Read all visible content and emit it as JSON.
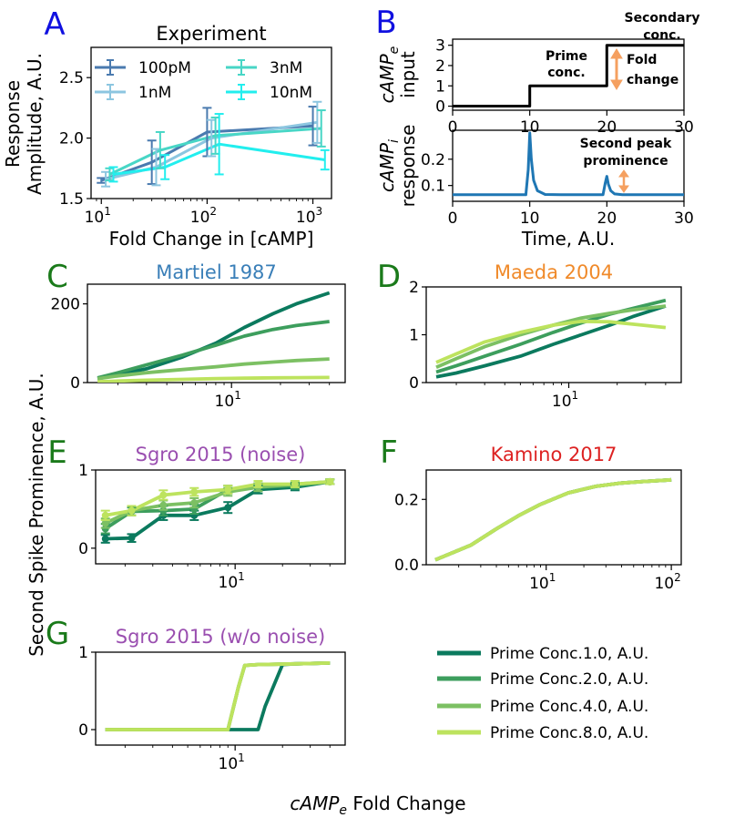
{
  "figure": {
    "shared_ylabel": "Second Spike Prominence, A.U.",
    "shared_xlabel_italic": "cAMP",
    "shared_xlabel_sub": "e",
    "shared_xlabel_rest": " Fold Change",
    "letter_colors": {
      "blue": "#1010e0",
      "green": "#1a7a1a"
    }
  },
  "legend_bottom": {
    "entries": [
      "Prime Conc.1.0, A.U.",
      "Prime Conc.2.0, A.U.",
      "Prime Conc.4.0, A.U.",
      "Prime Conc.8.0, A.U."
    ],
    "colors": [
      "#0b7a5e",
      "#3d9e5d",
      "#7cc063",
      "#bde35e"
    ]
  },
  "chart_data": [
    {
      "id": "A",
      "letter": "A",
      "type": "line",
      "title": "Experiment",
      "xlabel": "Fold Change in [cAMP]",
      "ylabel_line1": "Response",
      "ylabel_line2": "Amplitude, A.U.",
      "xscale": "log",
      "xlim": [
        8,
        1500
      ],
      "ylim": [
        1.5,
        2.75
      ],
      "yticks": [
        "1.5",
        "2.0",
        "2.5"
      ],
      "ytick_values": [
        1.5,
        2.0,
        2.5
      ],
      "xtick_bases": [
        "10",
        "10",
        "10"
      ],
      "xtick_exps": [
        "1",
        "2",
        "3"
      ],
      "xtick_values": [
        10,
        100,
        1000
      ],
      "legend": {
        "placement": "top-left",
        "columns": 2
      },
      "series": [
        {
          "name": "100pM",
          "color": "#4a7aaf",
          "x": [
            10,
            30,
            100,
            1000
          ],
          "y": [
            1.65,
            1.8,
            2.05,
            2.1
          ],
          "err": [
            0.02,
            0.18,
            0.2,
            0.16
          ]
        },
        {
          "name": "1nM",
          "color": "#8cc6e0",
          "x": [
            11,
            33,
            110,
            1100
          ],
          "y": [
            1.66,
            1.76,
            2.0,
            2.13
          ],
          "err": [
            0.06,
            0.15,
            0.15,
            0.17
          ]
        },
        {
          "name": "3nM",
          "color": "#48d6c6",
          "x": [
            12,
            36,
            120,
            1200
          ],
          "y": [
            1.7,
            1.9,
            2.02,
            2.08
          ],
          "err": [
            0.05,
            0.15,
            0.15,
            0.15
          ]
        },
        {
          "name": "10nM",
          "color": "#22eeee",
          "x": [
            13,
            40,
            130,
            1300
          ],
          "y": [
            1.7,
            1.76,
            1.95,
            1.82
          ],
          "err": [
            0.06,
            0.1,
            0.25,
            0.08
          ]
        }
      ]
    },
    {
      "id": "B1",
      "letter": "B",
      "type": "line",
      "ylabel_line1_italic": "cAMP",
      "ylabel_line1_sub": "e",
      "ylabel_line2": "input",
      "xlim": [
        0,
        30
      ],
      "ylim": [
        -0.2,
        3.3
      ],
      "yticks": [
        "0",
        "1",
        "2",
        "3"
      ],
      "ytick_values": [
        0,
        1,
        2,
        3
      ],
      "xticks": [
        "0",
        "10",
        "20",
        "30"
      ],
      "xtick_values": [
        0,
        10,
        20,
        30
      ],
      "series": [
        {
          "name": "",
          "color": "#000000",
          "x": [
            0,
            10,
            10,
            20,
            20,
            30
          ],
          "y": [
            0,
            0,
            1,
            1,
            3,
            3
          ]
        }
      ],
      "annotations": {
        "prime": [
          "Prime",
          "conc."
        ],
        "secondary": [
          "Secondary",
          "conc."
        ],
        "fold": [
          "Fold",
          "change"
        ]
      }
    },
    {
      "id": "B2",
      "type": "line",
      "ylabel_line1_italic": "cAMP",
      "ylabel_line1_sub": "i",
      "ylabel_line2": "response",
      "xlabel": "Time, A.U.",
      "xlim": [
        0,
        30
      ],
      "ylim": [
        0.04,
        0.31
      ],
      "yticks": [
        "0.1",
        "0.2"
      ],
      "ytick_values": [
        0.1,
        0.2
      ],
      "xticks": [
        "0",
        "10",
        "20",
        "30"
      ],
      "xtick_values": [
        0,
        10,
        20,
        30
      ],
      "series": [
        {
          "name": "",
          "color": "#1f77b4",
          "x": [
            0,
            9.5,
            9.8,
            10.0,
            10.2,
            10.5,
            11,
            12,
            14,
            19.5,
            19.8,
            20.0,
            20.2,
            20.5,
            21,
            22,
            30
          ],
          "y": [
            0.065,
            0.065,
            0.16,
            0.3,
            0.2,
            0.12,
            0.08,
            0.066,
            0.065,
            0.065,
            0.11,
            0.135,
            0.105,
            0.08,
            0.068,
            0.065,
            0.065
          ]
        }
      ],
      "annotations": {
        "second_peak": [
          "Second peak",
          "prominence"
        ]
      }
    },
    {
      "id": "C",
      "letter": "C",
      "type": "line",
      "title": "Martiel 1987",
      "title_color": "#3a7fb8",
      "xscale": "log",
      "xlim": [
        1.3,
        50
      ],
      "ylim": [
        0,
        250
      ],
      "yticks": [
        "0",
        "200"
      ],
      "ytick_values": [
        0,
        200
      ],
      "xtick_bases": [
        "10"
      ],
      "xtick_exps": [
        "1"
      ],
      "xtick_values": [
        10
      ],
      "series": [
        {
          "name": "Prime Conc.1.0, A.U.",
          "x": [
            1.5,
            2,
            3,
            5,
            8,
            12,
            18,
            25,
            40
          ],
          "y": [
            10,
            20,
            35,
            65,
            100,
            140,
            175,
            200,
            228
          ]
        },
        {
          "name": "Prime Conc.2.0, A.U.",
          "x": [
            1.5,
            2,
            3,
            5,
            8,
            12,
            18,
            25,
            40
          ],
          "y": [
            12,
            25,
            45,
            70,
            95,
            118,
            135,
            145,
            155
          ]
        },
        {
          "name": "Prime Conc.4.0, A.U.",
          "x": [
            1.5,
            2,
            3,
            5,
            8,
            12,
            18,
            25,
            40
          ],
          "y": [
            10,
            17,
            25,
            33,
            40,
            47,
            52,
            56,
            60
          ]
        },
        {
          "name": "Prime Conc.8.0, A.U.",
          "x": [
            1.5,
            2,
            3,
            5,
            8,
            12,
            18,
            25,
            40
          ],
          "y": [
            2,
            4,
            6,
            8,
            10,
            11,
            12,
            12.5,
            13
          ]
        }
      ]
    },
    {
      "id": "D",
      "letter": "D",
      "type": "line",
      "title": "Maeda 2004",
      "title_color": "#f08a2a",
      "xscale": "log",
      "xlim": [
        1.3,
        50
      ],
      "ylim": [
        0,
        2
      ],
      "yticks": [
        "0",
        "1",
        "2"
      ],
      "ytick_values": [
        0,
        1,
        2
      ],
      "xtick_bases": [
        "10"
      ],
      "xtick_exps": [
        "1"
      ],
      "xtick_values": [
        10
      ],
      "series": [
        {
          "name": "Prime Conc.1.0, A.U.",
          "x": [
            1.5,
            2,
            3,
            5,
            8,
            12,
            18,
            25,
            40
          ],
          "y": [
            0.12,
            0.2,
            0.35,
            0.55,
            0.8,
            1.0,
            1.2,
            1.38,
            1.6
          ]
        },
        {
          "name": "Prime Conc.2.0, A.U.",
          "x": [
            1.5,
            2,
            3,
            5,
            8,
            12,
            18,
            25,
            40
          ],
          "y": [
            0.22,
            0.35,
            0.55,
            0.8,
            1.05,
            1.25,
            1.43,
            1.55,
            1.72
          ]
        },
        {
          "name": "Prime Conc.4.0, A.U.",
          "x": [
            1.5,
            2,
            3,
            5,
            8,
            12,
            18,
            25,
            40
          ],
          "y": [
            0.32,
            0.5,
            0.75,
            1.0,
            1.2,
            1.35,
            1.45,
            1.52,
            1.6
          ]
        },
        {
          "name": "Prime Conc.8.0, A.U.",
          "x": [
            1.5,
            2,
            3,
            5,
            8,
            12,
            18,
            25,
            40
          ],
          "y": [
            0.42,
            0.6,
            0.85,
            1.05,
            1.2,
            1.28,
            1.27,
            1.22,
            1.15
          ]
        }
      ]
    },
    {
      "id": "E",
      "letter": "E",
      "type": "line",
      "title": "Sgro 2015 (noise)",
      "title_color": "#9a4fb0",
      "xscale": "log",
      "xlim": [
        1.3,
        50
      ],
      "ylim": [
        -0.2,
        1.0
      ],
      "yticks": [
        "0",
        "1"
      ],
      "ytick_values": [
        0,
        1
      ],
      "xtick_bases": [
        "10"
      ],
      "xtick_exps": [
        "1"
      ],
      "xtick_values": [
        10
      ],
      "series": [
        {
          "name": "Prime Conc.1.0, A.U.",
          "x": [
            1.5,
            2.2,
            3.5,
            5.5,
            9,
            14,
            24,
            40
          ],
          "y": [
            0.12,
            0.13,
            0.42,
            0.42,
            0.52,
            0.75,
            0.78,
            0.85
          ],
          "err": [
            0.05,
            0.05,
            0.06,
            0.06,
            0.07,
            0.05,
            0.04,
            0.03
          ]
        },
        {
          "name": "Prime Conc.2.0, A.U.",
          "x": [
            1.5,
            2.2,
            3.5,
            5.5,
            9,
            14,
            24,
            40
          ],
          "y": [
            0.25,
            0.47,
            0.48,
            0.5,
            0.75,
            0.78,
            0.8,
            0.85
          ],
          "err": [
            0.06,
            0.05,
            0.06,
            0.06,
            0.05,
            0.05,
            0.04,
            0.03
          ]
        },
        {
          "name": "Prime Conc.4.0, A.U.",
          "x": [
            1.5,
            2.2,
            3.5,
            5.5,
            9,
            14,
            24,
            40
          ],
          "y": [
            0.32,
            0.48,
            0.55,
            0.58,
            0.72,
            0.78,
            0.82,
            0.85
          ],
          "err": [
            0.06,
            0.06,
            0.06,
            0.06,
            0.05,
            0.05,
            0.04,
            0.03
          ]
        },
        {
          "name": "Prime Conc.8.0, A.U.",
          "x": [
            1.5,
            2.2,
            3.5,
            5.5,
            9,
            14,
            24,
            40
          ],
          "y": [
            0.42,
            0.48,
            0.68,
            0.72,
            0.75,
            0.82,
            0.82,
            0.85
          ],
          "err": [
            0.06,
            0.06,
            0.06,
            0.05,
            0.05,
            0.04,
            0.04,
            0.03
          ]
        }
      ]
    },
    {
      "id": "F",
      "letter": "F",
      "type": "line",
      "title": "Kamino 2017",
      "title_color": "#dd2222",
      "xscale": "log",
      "xlim": [
        1.1,
        120
      ],
      "ylim": [
        0,
        0.29
      ],
      "yticks": [
        "0.0",
        "0.2"
      ],
      "ytick_values": [
        0,
        0.2
      ],
      "xtick_bases": [
        "10",
        "10"
      ],
      "xtick_exps": [
        "1",
        "2"
      ],
      "xtick_values": [
        10,
        100
      ],
      "series": [
        {
          "name": "Prime Conc.1.0, A.U.",
          "x": [
            1.3,
            2.5,
            4,
            6,
            9,
            15,
            25,
            40,
            60,
            100
          ],
          "y": [
            0.015,
            0.06,
            0.11,
            0.15,
            0.185,
            0.22,
            0.24,
            0.25,
            0.255,
            0.26
          ]
        },
        {
          "name": "Prime Conc.2.0, A.U.",
          "x": [
            1.3,
            2.5,
            4,
            6,
            9,
            15,
            25,
            40,
            60,
            100
          ],
          "y": [
            0.015,
            0.06,
            0.11,
            0.15,
            0.185,
            0.22,
            0.24,
            0.25,
            0.255,
            0.26
          ]
        },
        {
          "name": "Prime Conc.4.0, A.U.",
          "x": [
            1.3,
            2.5,
            4,
            6,
            9,
            15,
            25,
            40,
            60,
            100
          ],
          "y": [
            0.015,
            0.06,
            0.11,
            0.15,
            0.185,
            0.22,
            0.24,
            0.25,
            0.255,
            0.26
          ]
        },
        {
          "name": "Prime Conc.8.0, A.U.",
          "x": [
            1.3,
            2.5,
            4,
            6,
            9,
            15,
            25,
            40,
            60,
            100
          ],
          "y": [
            0.015,
            0.06,
            0.11,
            0.15,
            0.185,
            0.22,
            0.24,
            0.25,
            0.255,
            0.26
          ]
        }
      ]
    },
    {
      "id": "G",
      "letter": "G",
      "type": "line",
      "title": "Sgro 2015 (w/o noise)",
      "title_color": "#9a4fb0",
      "xscale": "log",
      "xlim": [
        1.3,
        50
      ],
      "ylim": [
        -0.2,
        1.0
      ],
      "yticks": [
        "0",
        "1"
      ],
      "ytick_values": [
        0,
        1
      ],
      "xtick_bases": [
        "10"
      ],
      "xtick_exps": [
        "1"
      ],
      "xtick_values": [
        10
      ],
      "series": [
        {
          "name": "Prime Conc.1.0, A.U.",
          "x": [
            1.5,
            9,
            14,
            15.5,
            20,
            24,
            40
          ],
          "y": [
            0,
            0,
            0,
            0.3,
            0.84,
            0.85,
            0.86
          ]
        },
        {
          "name": "Prime Conc.2.0, A.U.",
          "x": [
            1.5,
            9,
            10.5,
            11.5,
            14,
            24,
            40
          ],
          "y": [
            0,
            0,
            0.55,
            0.83,
            0.84,
            0.85,
            0.86
          ]
        },
        {
          "name": "Prime Conc.4.0, A.U.",
          "x": [
            1.5,
            9,
            10.5,
            11.5,
            14,
            24,
            40
          ],
          "y": [
            0,
            0,
            0.55,
            0.83,
            0.84,
            0.85,
            0.86
          ]
        },
        {
          "name": "Prime Conc.8.0, A.U.",
          "x": [
            1.5,
            9,
            10.5,
            11.5,
            14,
            24,
            40
          ],
          "y": [
            0,
            0,
            0.55,
            0.83,
            0.84,
            0.85,
            0.86
          ]
        }
      ]
    }
  ]
}
